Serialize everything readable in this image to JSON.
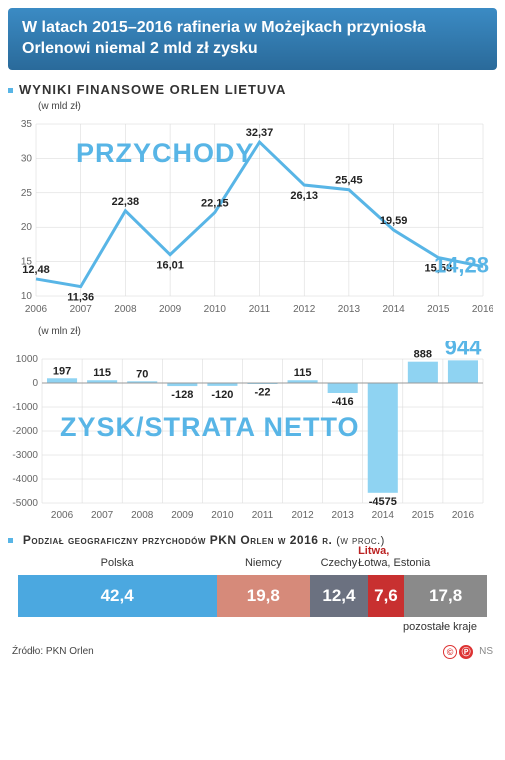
{
  "header": {
    "title": "W latach 2015–2016 rafineria w Możejkach przyniosła Orlenowi niemal 2 mld zł zysku"
  },
  "section1": {
    "title": "Wyniki finansowe Orlen Lietuva",
    "unit": "(w mld zł)",
    "big_label": "PRZYCHODY",
    "years": [
      "2006",
      "2007",
      "2008",
      "2009",
      "2010",
      "2011",
      "2012",
      "2013",
      "2014",
      "2015",
      "2016"
    ],
    "values": [
      12.48,
      11.36,
      22.38,
      16.01,
      22.15,
      32.37,
      26.13,
      25.45,
      19.59,
      15.58,
      14.28
    ],
    "value_labels": [
      "12,48",
      "11,36",
      "22,38",
      "16,01",
      "22,15",
      "32,37",
      "26,13",
      "25,45",
      "19,59",
      "15,58",
      "14,28"
    ],
    "ylim": [
      10,
      35
    ],
    "ytick_step": 5,
    "line_color": "#58b5e6",
    "grid_color": "#d6d6d6",
    "background": "#ffffff",
    "end_color": "#58b5e6"
  },
  "section2": {
    "unit": "(w mln zł)",
    "big_label": "ZYSK/STRATA NETTO",
    "years": [
      "2006",
      "2007",
      "2008",
      "2009",
      "2010",
      "2011",
      "2012",
      "2013",
      "2014",
      "2015",
      "2016"
    ],
    "values": [
      197,
      115,
      70,
      -128,
      -120,
      -22,
      115,
      -416,
      -4575,
      888,
      944
    ],
    "value_labels": [
      "197",
      "115",
      "70",
      "-128",
      "-120",
      "-22",
      "115",
      "-416",
      "-4575",
      "888",
      "944"
    ],
    "ylim": [
      -5000,
      1000
    ],
    "yticks": [
      -5000,
      -4000,
      -3000,
      -2000,
      -1000,
      0,
      1000
    ],
    "bar_color": "#8fd3f2",
    "grid_color": "#d6d6d6",
    "end_color": "#58b5e6"
  },
  "section3": {
    "title": "Podział geograficzny przychodów PKN Orlen w 2016 r.",
    "unit": "(w proc.)",
    "segments": [
      {
        "label": "Polska",
        "value": 42.4,
        "value_label": "42,4",
        "color": "#4ba8e0",
        "text_color": "#ffffff"
      },
      {
        "label": "Niemcy",
        "value": 19.8,
        "value_label": "19,8",
        "color": "#d68a7a",
        "text_color": "#ffffff"
      },
      {
        "label": "Czechy",
        "value": 12.4,
        "value_label": "12,4",
        "color": "#6b7180",
        "text_color": "#ffffff"
      },
      {
        "label": "Litwa,",
        "sublabel": "Łotwa, Estonia",
        "value": 7.6,
        "value_label": "7,6",
        "color": "#c83030",
        "text_color": "#ffffff",
        "highlight": true
      },
      {
        "label": "pozostałe kraje",
        "value": 17.8,
        "value_label": "17,8",
        "color": "#8a8a8a",
        "text_color": "#ffffff",
        "label_below": true
      }
    ]
  },
  "footer": {
    "source": "Źródło: PKN Orlen",
    "badges": [
      "©",
      "Ⓟ"
    ],
    "badge_bg": [
      "#fff",
      "#d33"
    ],
    "badge_fg": [
      "#d33",
      "#fff"
    ],
    "initials": "NS"
  }
}
